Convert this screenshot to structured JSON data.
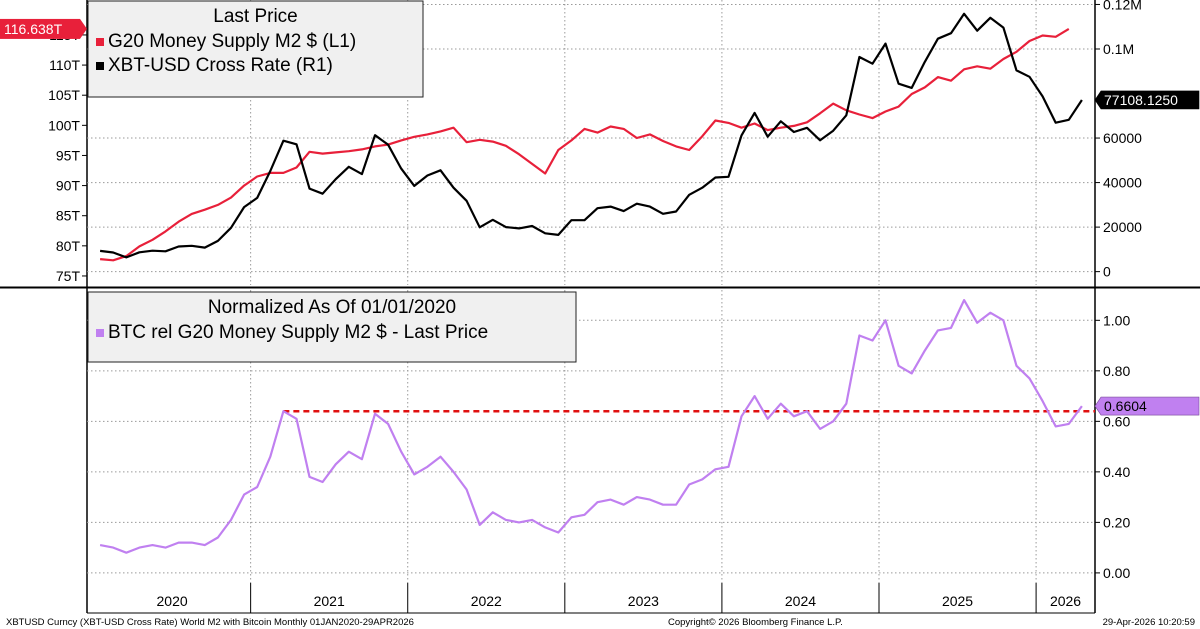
{
  "colors": {
    "m2": "#e8203a",
    "btc": "#000000",
    "ratio": "#c080f0",
    "ref_line": "#e01010",
    "grid": "#9a9a9a"
  },
  "footer": {
    "left": "XBTUSD Curncy (XBT-USD Cross Rate) World M2 with Bitcoin Monthly 01JAN2020-29APR2026",
    "center": "Copyright© 2026 Bloomberg Finance L.P.",
    "right": "29-Apr-2026 10:20:59"
  },
  "chart_data": [
    {
      "type": "line",
      "legend": {
        "title": "Last Price",
        "entries": [
          "G20 Money Supply M2 $  (L1)",
          "XBT-USD Cross Rate  (R1)"
        ],
        "placement": "top-left"
      },
      "x_labels": [
        "2020",
        "2021",
        "2022",
        "2023",
        "2024",
        "2025",
        "2026"
      ],
      "x_range": [
        "2020-01",
        "2026-04"
      ],
      "left_axis": {
        "ticks": [
          "75T",
          "80T",
          "85T",
          "90T",
          "95T",
          "100T",
          "105T",
          "110T",
          "115T"
        ],
        "tick_values": [
          75,
          80,
          85,
          90,
          95,
          100,
          105,
          110,
          115
        ],
        "range": [
          73.5,
          120.8
        ]
      },
      "right_axis": {
        "ticks": [
          "0",
          "20000",
          "40000",
          "60000",
          "0.1M",
          "0.12M"
        ],
        "tick_values": [
          0,
          20000,
          40000,
          60000,
          100000,
          120000
        ],
        "range": [
          -6000,
          122000
        ]
      },
      "grid": true,
      "series": [
        {
          "name": "G20 Money Supply M2 $  (L1)",
          "axis": "left",
          "last_label": "116.638T",
          "points": [
            [
              "2020-01",
              77.8
            ],
            [
              "2020-02",
              77.6
            ],
            [
              "2020-03",
              78.3
            ],
            [
              "2020-04",
              79.9
            ],
            [
              "2020-05",
              81.0
            ],
            [
              "2020-06",
              82.4
            ],
            [
              "2020-07",
              84.0
            ],
            [
              "2020-08",
              85.3
            ],
            [
              "2020-09",
              86.0
            ],
            [
              "2020-10",
              86.8
            ],
            [
              "2020-11",
              88.0
            ],
            [
              "2020-12",
              90.0
            ],
            [
              "2021-01",
              91.5
            ],
            [
              "2021-02",
              92.1
            ],
            [
              "2021-03",
              92.1
            ],
            [
              "2021-04",
              93.0
            ],
            [
              "2021-05",
              95.6
            ],
            [
              "2021-06",
              95.3
            ],
            [
              "2021-07",
              95.5
            ],
            [
              "2021-08",
              95.7
            ],
            [
              "2021-09",
              96.0
            ],
            [
              "2021-10",
              96.5
            ],
            [
              "2021-11",
              96.8
            ],
            [
              "2021-12",
              97.5
            ],
            [
              "2022-01",
              98.1
            ],
            [
              "2022-02",
              98.5
            ],
            [
              "2022-03",
              99.0
            ],
            [
              "2022-04",
              99.6
            ],
            [
              "2022-05",
              97.2
            ],
            [
              "2022-06",
              97.6
            ],
            [
              "2022-07",
              97.3
            ],
            [
              "2022-08",
              96.6
            ],
            [
              "2022-09",
              95.2
            ],
            [
              "2022-10",
              93.6
            ],
            [
              "2022-11",
              92.0
            ],
            [
              "2022-12",
              95.9
            ],
            [
              "2023-01",
              97.5
            ],
            [
              "2023-02",
              99.4
            ],
            [
              "2023-03",
              98.8
            ],
            [
              "2023-04",
              99.8
            ],
            [
              "2023-05",
              99.4
            ],
            [
              "2023-06",
              97.9
            ],
            [
              "2023-07",
              98.5
            ],
            [
              "2023-08",
              97.4
            ],
            [
              "2023-09",
              96.5
            ],
            [
              "2023-10",
              95.9
            ],
            [
              "2023-11",
              98.2
            ],
            [
              "2023-12",
              100.8
            ],
            [
              "2024-01",
              100.4
            ],
            [
              "2024-02",
              99.6
            ],
            [
              "2024-03",
              100.3
            ],
            [
              "2024-04",
              99.2
            ],
            [
              "2024-05",
              99.6
            ],
            [
              "2024-06",
              99.9
            ],
            [
              "2024-07",
              100.5
            ],
            [
              "2024-08",
              102.0
            ],
            [
              "2024-09",
              103.6
            ],
            [
              "2024-10",
              102.5
            ],
            [
              "2024-11",
              101.8
            ],
            [
              "2024-12",
              101.2
            ],
            [
              "2025-01",
              102.3
            ],
            [
              "2025-02",
              103.1
            ],
            [
              "2025-03",
              105.2
            ],
            [
              "2025-04",
              106.3
            ],
            [
              "2025-05",
              108.0
            ],
            [
              "2025-06",
              107.4
            ],
            [
              "2025-07",
              109.3
            ],
            [
              "2025-08",
              109.8
            ],
            [
              "2025-09",
              109.4
            ],
            [
              "2025-10",
              111.0
            ],
            [
              "2025-11",
              112.2
            ],
            [
              "2025-12",
              114.0
            ],
            [
              "2026-01",
              114.9
            ],
            [
              "2026-02",
              114.7
            ],
            [
              "2026-03",
              116.0
            ]
          ]
        },
        {
          "name": "XBT-USD Cross Rate  (R1)",
          "axis": "right",
          "last_label": "77108.1250",
          "points": [
            [
              "2020-01",
              9300
            ],
            [
              "2020-02",
              8600
            ],
            [
              "2020-03",
              6400
            ],
            [
              "2020-04",
              8700
            ],
            [
              "2020-05",
              9400
            ],
            [
              "2020-06",
              9150
            ],
            [
              "2020-07",
              11300
            ],
            [
              "2020-08",
              11600
            ],
            [
              "2020-09",
              10800
            ],
            [
              "2020-10",
              13800
            ],
            [
              "2020-11",
              19700
            ],
            [
              "2020-12",
              29000
            ],
            [
              "2021-01",
              33100
            ],
            [
              "2021-02",
              45200
            ],
            [
              "2021-03",
              58800
            ],
            [
              "2021-04",
              57200
            ],
            [
              "2021-05",
              37300
            ],
            [
              "2021-06",
              35000
            ],
            [
              "2021-07",
              41500
            ],
            [
              "2021-08",
              47100
            ],
            [
              "2021-09",
              43800
            ],
            [
              "2021-10",
              61300
            ],
            [
              "2021-11",
              57000
            ],
            [
              "2021-12",
              46300
            ],
            [
              "2022-01",
              38500
            ],
            [
              "2022-02",
              43200
            ],
            [
              "2022-03",
              45500
            ],
            [
              "2022-04",
              37700
            ],
            [
              "2022-05",
              31800
            ],
            [
              "2022-06",
              19900
            ],
            [
              "2022-07",
              23300
            ],
            [
              "2022-08",
              20000
            ],
            [
              "2022-09",
              19400
            ],
            [
              "2022-10",
              20500
            ],
            [
              "2022-11",
              17200
            ],
            [
              "2022-12",
              16500
            ],
            [
              "2023-01",
              23100
            ],
            [
              "2023-02",
              23100
            ],
            [
              "2023-03",
              28500
            ],
            [
              "2023-04",
              29200
            ],
            [
              "2023-05",
              27200
            ],
            [
              "2023-06",
              30500
            ],
            [
              "2023-07",
              29200
            ],
            [
              "2023-08",
              26000
            ],
            [
              "2023-09",
              27000
            ],
            [
              "2023-10",
              34500
            ],
            [
              "2023-11",
              37700
            ],
            [
              "2023-12",
              42300
            ],
            [
              "2024-01",
              42600
            ],
            [
              "2024-02",
              61200
            ],
            [
              "2024-03",
              71300
            ],
            [
              "2024-04",
              60600
            ],
            [
              "2024-05",
              67500
            ],
            [
              "2024-06",
              62700
            ],
            [
              "2024-07",
              64600
            ],
            [
              "2024-08",
              59000
            ],
            [
              "2024-09",
              63300
            ],
            [
              "2024-10",
              70200
            ],
            [
              "2024-11",
              96400
            ],
            [
              "2024-12",
              93400
            ],
            [
              "2025-01",
              102400
            ],
            [
              "2025-02",
              84400
            ],
            [
              "2025-03",
              82500
            ],
            [
              "2025-04",
              94200
            ],
            [
              "2025-05",
              104600
            ],
            [
              "2025-06",
              107100
            ],
            [
              "2025-07",
              115800
            ],
            [
              "2025-08",
              108200
            ],
            [
              "2025-09",
              114000
            ],
            [
              "2025-10",
              109600
            ],
            [
              "2025-11",
              90400
            ],
            [
              "2025-12",
              87500
            ],
            [
              "2026-01",
              78700
            ],
            [
              "2026-02",
              66900
            ],
            [
              "2026-03",
              68200
            ],
            [
              "2026-04",
              77108
            ]
          ]
        }
      ]
    },
    {
      "type": "line",
      "legend": {
        "title": "Normalized As Of 01/01/2020",
        "entries": [
          "BTC rel G20 Money Supply M2 $ - Last Price"
        ],
        "placement": "top-left"
      },
      "x_labels": [
        "2020",
        "2021",
        "2022",
        "2023",
        "2024",
        "2025",
        "2026"
      ],
      "x_range": [
        "2020-01",
        "2026-04"
      ],
      "right_axis": {
        "ticks": [
          "0.00",
          "0.20",
          "0.40",
          "0.60",
          "0.80",
          "1.00"
        ],
        "tick_values": [
          0,
          0.2,
          0.4,
          0.6,
          0.8,
          1.0
        ],
        "range": [
          -0.04,
          1.12
        ]
      },
      "grid": true,
      "reference_line": {
        "value": 0.64,
        "from": "2021-03",
        "to": "2026-04",
        "style": "dashed"
      },
      "series": [
        {
          "name": "BTC rel G20 Money Supply M2 $ - Last Price",
          "axis": "right",
          "last_label": "0.6604",
          "points": [
            [
              "2020-01",
              0.11
            ],
            [
              "2020-02",
              0.1
            ],
            [
              "2020-03",
              0.08
            ],
            [
              "2020-04",
              0.1
            ],
            [
              "2020-05",
              0.11
            ],
            [
              "2020-06",
              0.1
            ],
            [
              "2020-07",
              0.12
            ],
            [
              "2020-08",
              0.12
            ],
            [
              "2020-09",
              0.11
            ],
            [
              "2020-10",
              0.14
            ],
            [
              "2020-11",
              0.21
            ],
            [
              "2020-12",
              0.31
            ],
            [
              "2021-01",
              0.34
            ],
            [
              "2021-02",
              0.46
            ],
            [
              "2021-03",
              0.64
            ],
            [
              "2021-04",
              0.61
            ],
            [
              "2021-05",
              0.38
            ],
            [
              "2021-06",
              0.36
            ],
            [
              "2021-07",
              0.43
            ],
            [
              "2021-08",
              0.48
            ],
            [
              "2021-09",
              0.45
            ],
            [
              "2021-10",
              0.63
            ],
            [
              "2021-11",
              0.59
            ],
            [
              "2021-12",
              0.48
            ],
            [
              "2022-01",
              0.39
            ],
            [
              "2022-02",
              0.42
            ],
            [
              "2022-03",
              0.46
            ],
            [
              "2022-04",
              0.4
            ],
            [
              "2022-05",
              0.33
            ],
            [
              "2022-06",
              0.19
            ],
            [
              "2022-07",
              0.24
            ],
            [
              "2022-08",
              0.21
            ],
            [
              "2022-09",
              0.2
            ],
            [
              "2022-10",
              0.21
            ],
            [
              "2022-11",
              0.18
            ],
            [
              "2022-12",
              0.16
            ],
            [
              "2023-01",
              0.22
            ],
            [
              "2023-02",
              0.23
            ],
            [
              "2023-03",
              0.28
            ],
            [
              "2023-04",
              0.29
            ],
            [
              "2023-05",
              0.27
            ],
            [
              "2023-06",
              0.3
            ],
            [
              "2023-07",
              0.29
            ],
            [
              "2023-08",
              0.27
            ],
            [
              "2023-09",
              0.27
            ],
            [
              "2023-10",
              0.35
            ],
            [
              "2023-11",
              0.37
            ],
            [
              "2023-12",
              0.41
            ],
            [
              "2024-01",
              0.42
            ],
            [
              "2024-02",
              0.62
            ],
            [
              "2024-03",
              0.7
            ],
            [
              "2024-04",
              0.61
            ],
            [
              "2024-05",
              0.67
            ],
            [
              "2024-06",
              0.62
            ],
            [
              "2024-07",
              0.64
            ],
            [
              "2024-08",
              0.57
            ],
            [
              "2024-09",
              0.6
            ],
            [
              "2024-10",
              0.67
            ],
            [
              "2024-11",
              0.94
            ],
            [
              "2024-12",
              0.92
            ],
            [
              "2025-01",
              1.0
            ],
            [
              "2025-02",
              0.82
            ],
            [
              "2025-03",
              0.79
            ],
            [
              "2025-04",
              0.88
            ],
            [
              "2025-05",
              0.96
            ],
            [
              "2025-06",
              0.97
            ],
            [
              "2025-07",
              1.08
            ],
            [
              "2025-08",
              0.99
            ],
            [
              "2025-09",
              1.03
            ],
            [
              "2025-10",
              1.0
            ],
            [
              "2025-11",
              0.82
            ],
            [
              "2025-12",
              0.77
            ],
            [
              "2026-01",
              0.68
            ],
            [
              "2026-02",
              0.58
            ],
            [
              "2026-03",
              0.59
            ],
            [
              "2026-04",
              0.6604
            ]
          ]
        }
      ]
    }
  ]
}
